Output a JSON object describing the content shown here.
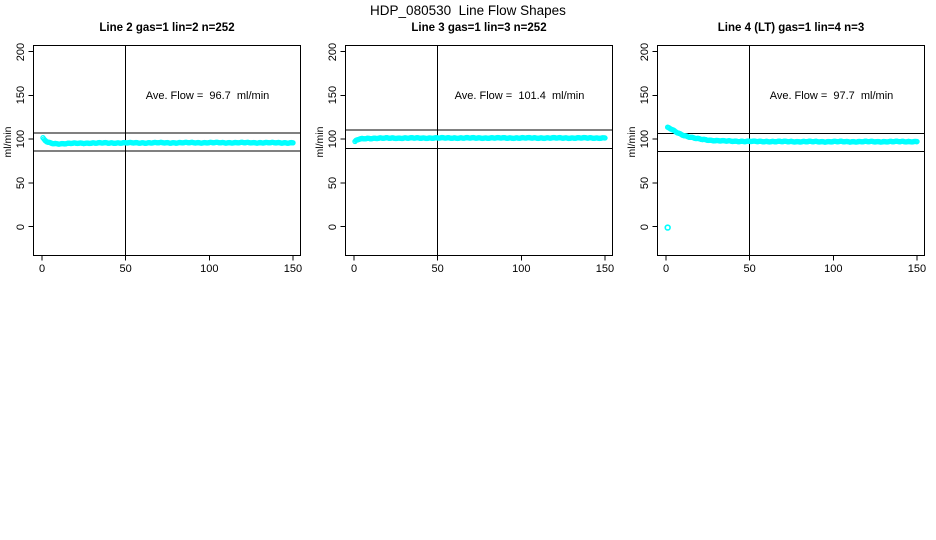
{
  "figure": {
    "title": "HDP_080530  Line Flow Shapes",
    "background_color": "#ffffff",
    "axis_color": "#000000",
    "point_color": "#00ffff"
  },
  "chart_data": {
    "type": "scatter",
    "title": "HDP_080530  Line Flow Shapes",
    "ylabel": "ml/min",
    "xlabel": "",
    "marker": "open-circle",
    "x_ticks": [
      0,
      50,
      100,
      150
    ],
    "y_ticks": [
      0,
      50,
      100,
      150,
      200
    ],
    "xlim": [
      0,
      155
    ],
    "ylim": [
      -33,
      207
    ],
    "grid": false,
    "legend": "none",
    "panels": [
      {
        "title": "Line 2 gas=1 lin=2 n=252",
        "annotation": "Ave. Flow =  96.7  ml/min",
        "ave_flow": 96.7,
        "n": 252,
        "vline_x": 50,
        "hlines": [
          107.0,
          86.5
        ],
        "points": [
          [
            0.6,
            101.2
          ],
          [
            1.2,
            99.6
          ],
          [
            2,
            98.2
          ],
          [
            3,
            97.0
          ],
          [
            4,
            96.2
          ],
          [
            5,
            95.7
          ],
          [
            6,
            95.3
          ],
          [
            8,
            95.0
          ],
          [
            10,
            94.9
          ],
          [
            13,
            94.9
          ],
          [
            16,
            95.1
          ],
          [
            20,
            95.3
          ],
          [
            25,
            95.5
          ],
          [
            30,
            95.6
          ],
          [
            40,
            95.7
          ],
          [
            50,
            95.8
          ],
          [
            60,
            95.8
          ],
          [
            70,
            95.9
          ],
          [
            80,
            95.9
          ],
          [
            90,
            96.0
          ],
          [
            100,
            96.0
          ],
          [
            110,
            96.0
          ],
          [
            120,
            96.0
          ],
          [
            130,
            96.0
          ],
          [
            140,
            95.9
          ],
          [
            150,
            95.9
          ]
        ],
        "outliers": []
      },
      {
        "title": "Line 3 gas=1 lin=3 n=252",
        "annotation": "Ave. Flow =  101.4  ml/min",
        "ave_flow": 101.4,
        "n": 252,
        "vline_x": 50,
        "hlines": [
          110.5,
          89.5
        ],
        "points": [
          [
            0.6,
            97.0
          ],
          [
            1.2,
            98.3
          ],
          [
            2,
            99.2
          ],
          [
            3,
            99.9
          ],
          [
            4,
            100.3
          ],
          [
            5,
            100.5
          ],
          [
            6,
            100.7
          ],
          [
            8,
            100.9
          ],
          [
            10,
            101.0
          ],
          [
            15,
            101.1
          ],
          [
            20,
            101.2
          ],
          [
            30,
            101.3
          ],
          [
            40,
            101.3
          ],
          [
            50,
            101.4
          ],
          [
            60,
            101.4
          ],
          [
            70,
            101.4
          ],
          [
            80,
            101.4
          ],
          [
            90,
            101.4
          ],
          [
            100,
            101.4
          ],
          [
            110,
            101.4
          ],
          [
            120,
            101.4
          ],
          [
            130,
            101.4
          ],
          [
            140,
            101.4
          ],
          [
            150,
            101.4
          ]
        ],
        "outliers": []
      },
      {
        "title": "Line 4 (LT) gas=1 lin=4 n=3",
        "annotation": "Ave. Flow =  97.7  ml/min",
        "ave_flow": 97.7,
        "n": 3,
        "vline_x": 50,
        "hlines": [
          106.7,
          85.7
        ],
        "points": [
          [
            1,
            113.2
          ],
          [
            2,
            112.6
          ],
          [
            3,
            111.6
          ],
          [
            4,
            110.5
          ],
          [
            5,
            109.4
          ],
          [
            6,
            108.4
          ],
          [
            7,
            107.4
          ],
          [
            8,
            106.5
          ],
          [
            9,
            105.7
          ],
          [
            10,
            104.9
          ],
          [
            11,
            104.2
          ],
          [
            12,
            103.6
          ],
          [
            13,
            103.0
          ],
          [
            14,
            102.5
          ],
          [
            15,
            102.0
          ],
          [
            16,
            101.6
          ],
          [
            17,
            101.2
          ],
          [
            18,
            100.8
          ],
          [
            19,
            100.5
          ],
          [
            20,
            100.2
          ],
          [
            22,
            99.7
          ],
          [
            24,
            99.3
          ],
          [
            26,
            98.9
          ],
          [
            28,
            98.6
          ],
          [
            30,
            98.4
          ],
          [
            33,
            98.1
          ],
          [
            36,
            97.9
          ],
          [
            40,
            97.7
          ],
          [
            45,
            97.6
          ],
          [
            50,
            97.5
          ],
          [
            55,
            97.4
          ],
          [
            60,
            97.4
          ],
          [
            65,
            97.3
          ],
          [
            70,
            97.3
          ],
          [
            75,
            97.3
          ],
          [
            80,
            97.2
          ],
          [
            85,
            97.2
          ],
          [
            90,
            97.2
          ],
          [
            95,
            97.2
          ],
          [
            100,
            97.2
          ],
          [
            105,
            97.2
          ],
          [
            110,
            97.2
          ],
          [
            115,
            97.2
          ],
          [
            120,
            97.2
          ],
          [
            125,
            97.2
          ],
          [
            130,
            97.2
          ],
          [
            135,
            97.2
          ],
          [
            140,
            97.3
          ],
          [
            145,
            97.3
          ],
          [
            150,
            97.3
          ]
        ],
        "outliers": [
          [
            1,
            -1
          ]
        ]
      }
    ]
  }
}
